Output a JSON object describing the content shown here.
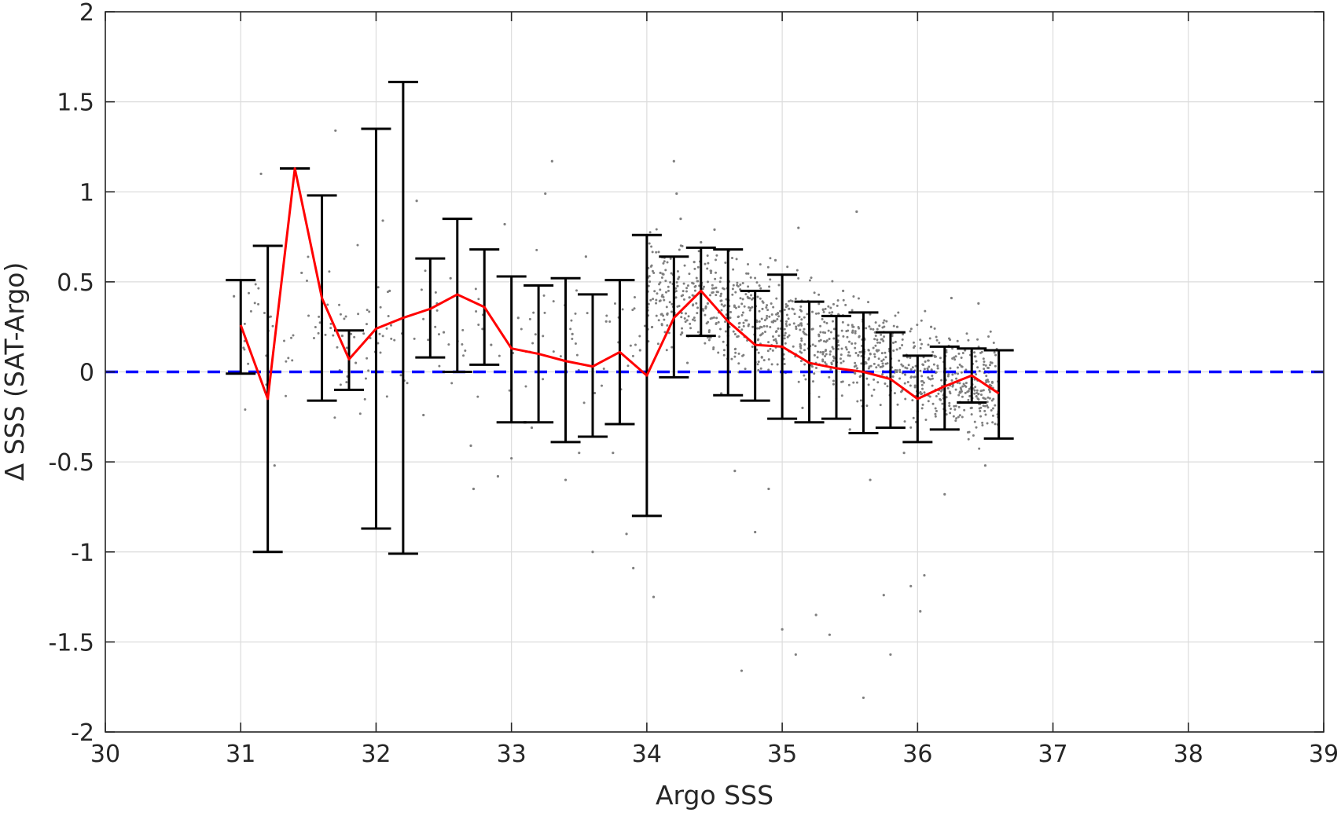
{
  "chart_data": {
    "type": "scatter",
    "title": "",
    "xlabel": "Argo SSS",
    "ylabel": "Δ SSS (SAT-Argo)",
    "xlim": [
      30,
      39
    ],
    "ylim": [
      -2,
      2
    ],
    "xticks": [
      30,
      31,
      32,
      33,
      34,
      35,
      36,
      37,
      38,
      39
    ],
    "yticks": [
      -2,
      -1.5,
      -1,
      -0.5,
      0,
      0.5,
      1,
      1.5,
      2
    ],
    "xtick_labels": [
      "30",
      "31",
      "32",
      "33",
      "34",
      "35",
      "36",
      "37",
      "38",
      "39"
    ],
    "ytick_labels": [
      "-2",
      "-1.5",
      "-1",
      "-0.5",
      "0",
      "0.5",
      "1",
      "1.5",
      "2"
    ],
    "grid": true,
    "colors": {
      "points": "#7f7f7f",
      "mean_line": "#ff0000",
      "error_bars": "#000000",
      "zero_line": "#0000ff",
      "grid": "#dcdcdc",
      "axes": "#262626"
    },
    "mean_line": {
      "x": [
        31.0,
        31.2,
        31.4,
        31.6,
        31.8,
        32.0,
        32.2,
        32.4,
        32.6,
        32.8,
        33.0,
        33.2,
        33.4,
        33.6,
        33.8,
        34.0,
        34.2,
        34.4,
        34.6,
        34.8,
        35.0,
        35.2,
        35.4,
        35.6,
        35.8,
        36.0,
        36.2,
        36.4,
        36.6
      ],
      "y": [
        0.26,
        -0.15,
        1.13,
        0.41,
        0.07,
        0.24,
        0.3,
        0.35,
        0.43,
        0.36,
        0.13,
        0.1,
        0.06,
        0.03,
        0.11,
        -0.02,
        0.3,
        0.45,
        0.28,
        0.15,
        0.14,
        0.05,
        0.02,
        0.0,
        -0.04,
        -0.15,
        -0.08,
        -0.02,
        -0.12
      ]
    },
    "error_bars": {
      "x": [
        31.0,
        31.2,
        31.4,
        31.6,
        31.8,
        32.0,
        32.2,
        32.4,
        32.6,
        32.8,
        33.0,
        33.2,
        33.4,
        33.6,
        33.8,
        34.0,
        34.2,
        34.4,
        34.6,
        34.8,
        35.0,
        35.2,
        35.4,
        35.6,
        35.8,
        36.0,
        36.2,
        36.4,
        36.6
      ],
      "lower": [
        -0.01,
        -1.0,
        1.13,
        -0.16,
        -0.1,
        -0.87,
        -1.01,
        0.08,
        0.0,
        0.04,
        -0.28,
        -0.28,
        -0.39,
        -0.36,
        -0.29,
        -0.8,
        -0.03,
        0.2,
        -0.13,
        -0.16,
        -0.26,
        -0.28,
        -0.26,
        -0.34,
        -0.31,
        -0.39,
        -0.32,
        -0.17,
        -0.37
      ],
      "upper": [
        0.51,
        0.7,
        1.13,
        0.98,
        0.23,
        1.35,
        1.61,
        0.63,
        0.85,
        0.68,
        0.53,
        0.48,
        0.52,
        0.43,
        0.51,
        0.76,
        0.64,
        0.69,
        0.68,
        0.45,
        0.54,
        0.39,
        0.31,
        0.33,
        0.22,
        0.09,
        0.14,
        0.13,
        0.12
      ]
    },
    "zero_line": {
      "y": 0,
      "style": "dashed"
    },
    "scatter_note": "dense cloud of grey points concentrated between x 34 and 36.5, y -0.6 to 0.6, with sparse outliers",
    "scatter_sample": [
      [
        30.95,
        0.42
      ],
      [
        31.15,
        1.1
      ],
      [
        31.25,
        -0.52
      ],
      [
        31.45,
        0.55
      ],
      [
        31.7,
        1.34
      ],
      [
        31.75,
        0.2
      ],
      [
        31.85,
        0.05
      ],
      [
        32.05,
        0.84
      ],
      [
        32.1,
        0.45
      ],
      [
        32.3,
        0.95
      ],
      [
        32.35,
        -0.24
      ],
      [
        32.45,
        0.38
      ],
      [
        32.5,
        0.22
      ],
      [
        32.55,
        0.52
      ],
      [
        32.7,
        -0.41
      ],
      [
        32.72,
        -0.65
      ],
      [
        32.85,
        0.15
      ],
      [
        32.9,
        -0.58
      ],
      [
        32.95,
        0.82
      ],
      [
        33.0,
        -0.48
      ],
      [
        33.05,
        0.3
      ],
      [
        33.15,
        -0.31
      ],
      [
        33.3,
        1.17
      ],
      [
        33.25,
        0.99
      ],
      [
        33.4,
        -0.6
      ],
      [
        33.45,
        0.21
      ],
      [
        33.5,
        -0.45
      ],
      [
        33.55,
        0.64
      ],
      [
        33.6,
        -1.0
      ],
      [
        33.7,
        0.28
      ],
      [
        33.75,
        -0.45
      ],
      [
        33.85,
        -0.9
      ],
      [
        33.9,
        -1.09
      ],
      [
        33.95,
        0.12
      ],
      [
        34.05,
        -1.25
      ],
      [
        34.1,
        0.55
      ],
      [
        34.15,
        0.32
      ],
      [
        34.2,
        1.17
      ],
      [
        34.22,
        0.99
      ],
      [
        34.25,
        0.85
      ],
      [
        34.3,
        0.05
      ],
      [
        34.35,
        0.61
      ],
      [
        34.4,
        0.72
      ],
      [
        34.45,
        0.38
      ],
      [
        34.5,
        0.79
      ],
      [
        34.55,
        -0.12
      ],
      [
        34.6,
        0.2
      ],
      [
        34.65,
        -0.55
      ],
      [
        34.7,
        -1.66
      ],
      [
        34.75,
        0.41
      ],
      [
        34.8,
        -0.89
      ],
      [
        34.85,
        0.08
      ],
      [
        34.9,
        -0.65
      ],
      [
        34.95,
        0.62
      ],
      [
        35.0,
        -1.43
      ],
      [
        35.05,
        0.35
      ],
      [
        35.1,
        -1.57
      ],
      [
        35.12,
        0.8
      ],
      [
        35.15,
        -0.2
      ],
      [
        35.2,
        -0.12
      ],
      [
        35.25,
        -1.35
      ],
      [
        35.3,
        0.06
      ],
      [
        35.35,
        -1.46
      ],
      [
        35.4,
        -0.15
      ],
      [
        35.45,
        0.45
      ],
      [
        35.5,
        -0.32
      ],
      [
        35.55,
        0.89
      ],
      [
        35.6,
        -1.81
      ],
      [
        35.65,
        -0.6
      ],
      [
        35.7,
        0.12
      ],
      [
        35.75,
        -1.24
      ],
      [
        35.8,
        -1.57
      ],
      [
        35.85,
        0.25
      ],
      [
        35.9,
        -0.45
      ],
      [
        35.95,
        -1.19
      ],
      [
        36.0,
        -0.22
      ],
      [
        36.02,
        -1.33
      ],
      [
        36.05,
        -1.13
      ],
      [
        36.1,
        0.25
      ],
      [
        36.15,
        0.02
      ],
      [
        36.2,
        -0.68
      ],
      [
        36.25,
        0.41
      ],
      [
        36.3,
        -0.32
      ],
      [
        36.35,
        0.12
      ],
      [
        36.4,
        -0.2
      ],
      [
        36.45,
        0.38
      ],
      [
        36.5,
        -0.52
      ],
      [
        36.55,
        0.05
      ]
    ]
  }
}
